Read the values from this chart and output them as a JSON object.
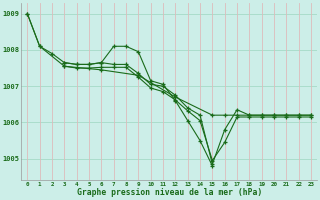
{
  "title": "Graphe pression niveau de la mer (hPa)",
  "background_color": "#cceee8",
  "grid_color_h": "#aaddcc",
  "grid_color_v": "#ddbbbb",
  "line_color": "#1a6b1a",
  "ylim": [
    1004.4,
    1009.3
  ],
  "xlim": [
    -0.5,
    23.5
  ],
  "yticks": [
    1005,
    1006,
    1007,
    1008,
    1009
  ],
  "xticks": [
    0,
    1,
    2,
    3,
    4,
    5,
    6,
    7,
    8,
    9,
    10,
    11,
    12,
    13,
    14,
    15,
    16,
    17,
    18,
    19,
    20,
    21,
    22,
    23
  ],
  "series": [
    {
      "x": [
        0,
        1,
        2,
        3,
        4,
        5,
        6,
        7,
        8,
        9,
        10,
        11,
        12,
        13,
        14,
        15
      ],
      "y": [
        1009.0,
        1008.1,
        1007.9,
        1007.65,
        1007.6,
        1007.6,
        1007.65,
        1008.1,
        1008.1,
        1007.95,
        1007.15,
        1007.05,
        1006.6,
        1006.05,
        1005.5,
        1004.8
      ]
    },
    {
      "x": [
        3,
        4,
        5,
        6,
        7,
        8,
        9,
        10,
        11,
        12,
        13,
        14,
        15,
        16,
        17,
        18,
        19,
        20,
        21,
        22,
        23
      ],
      "y": [
        1007.65,
        1007.6,
        1007.6,
        1007.65,
        1007.6,
        1007.6,
        1007.35,
        1007.05,
        1007.0,
        1006.75,
        1006.4,
        1006.2,
        1004.85,
        1005.8,
        1006.35,
        1006.2,
        1006.2,
        1006.2,
        1006.2,
        1006.2,
        1006.2
      ]
    },
    {
      "x": [
        3,
        4,
        5,
        6,
        7,
        8,
        9,
        10,
        11,
        12,
        13,
        14,
        15,
        16,
        17,
        18,
        19,
        20,
        21,
        22,
        23
      ],
      "y": [
        1007.55,
        1007.5,
        1007.5,
        1007.52,
        1007.52,
        1007.52,
        1007.25,
        1006.95,
        1006.85,
        1006.62,
        1006.32,
        1006.05,
        1004.95,
        1005.45,
        1006.15,
        1006.15,
        1006.15,
        1006.15,
        1006.15,
        1006.15,
        1006.15
      ]
    },
    {
      "x": [
        0,
        1,
        3,
        6,
        9,
        12,
        15,
        16,
        17,
        18,
        19,
        20,
        21,
        22,
        23
      ],
      "y": [
        1009.0,
        1008.1,
        1007.55,
        1007.45,
        1007.3,
        1006.7,
        1006.2,
        1006.2,
        1006.2,
        1006.2,
        1006.2,
        1006.2,
        1006.2,
        1006.2,
        1006.2
      ]
    }
  ]
}
